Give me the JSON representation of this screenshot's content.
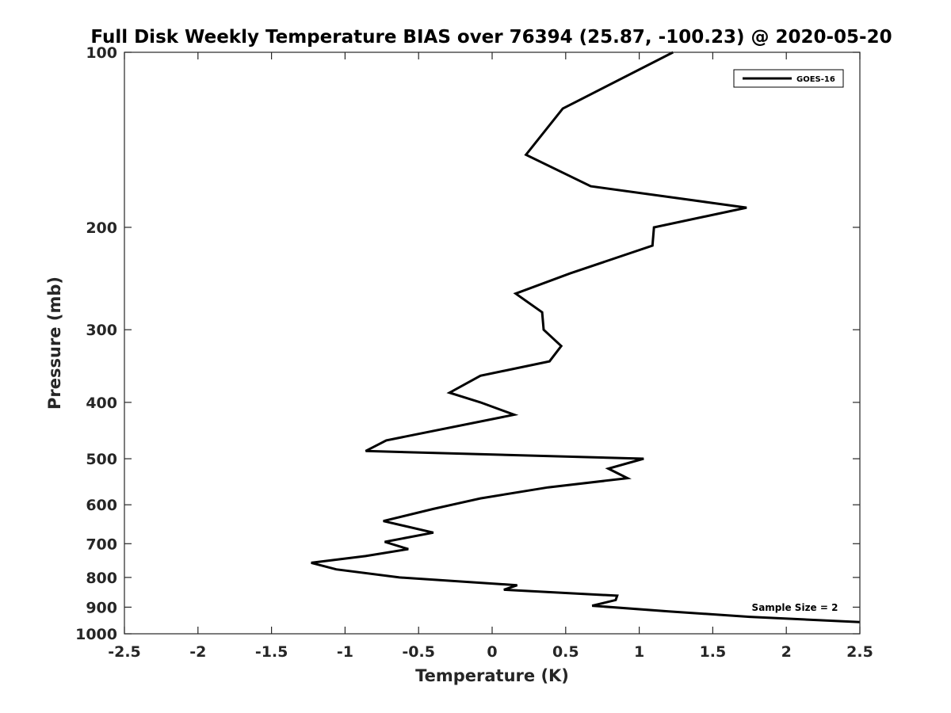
{
  "chart_data": {
    "type": "line",
    "title": "Full Disk Weekly Temperature BIAS over 76394 (25.87, -100.23) @ 2020-05-20",
    "xlabel": "Temperature (K)",
    "ylabel": "Pressure (mb)",
    "xlim": [
      -2.5,
      2.5
    ],
    "ylim": [
      1000,
      100
    ],
    "yscale": "log",
    "xticks": [
      -2.5,
      -2,
      -1.5,
      -1,
      -0.5,
      0,
      0.5,
      1,
      1.5,
      2,
      2.5
    ],
    "xtick_labels": [
      "-2.5",
      "-2",
      "-1.5",
      "-1",
      "-0.5",
      "0",
      "0.5",
      "1",
      "1.5",
      "2",
      "2.5"
    ],
    "yticks": [
      100,
      200,
      300,
      400,
      500,
      600,
      700,
      800,
      900,
      1000
    ],
    "ytick_labels": [
      "100",
      "200",
      "300",
      "400",
      "500",
      "600",
      "700",
      "800",
      "900",
      "1000"
    ],
    "grid": false,
    "legend_position": "top-right",
    "annotation": "Sample Size = 2",
    "series": [
      {
        "name": "GOES-16",
        "color": "#000000",
        "points": [
          {
            "x": 1.23,
            "p": 100
          },
          {
            "x": 0.48,
            "p": 125
          },
          {
            "x": 0.23,
            "p": 150
          },
          {
            "x": 0.67,
            "p": 170
          },
          {
            "x": 1.73,
            "p": 185
          },
          {
            "x": 1.1,
            "p": 200
          },
          {
            "x": 1.09,
            "p": 215
          },
          {
            "x": 0.53,
            "p": 240
          },
          {
            "x": 0.16,
            "p": 260
          },
          {
            "x": 0.34,
            "p": 280
          },
          {
            "x": 0.35,
            "p": 300
          },
          {
            "x": 0.47,
            "p": 320
          },
          {
            "x": 0.39,
            "p": 340
          },
          {
            "x": -0.08,
            "p": 360
          },
          {
            "x": -0.29,
            "p": 385
          },
          {
            "x": -0.08,
            "p": 400
          },
          {
            "x": 0.15,
            "p": 420
          },
          {
            "x": -0.72,
            "p": 465
          },
          {
            "x": -0.86,
            "p": 485
          },
          {
            "x": 1.03,
            "p": 500
          },
          {
            "x": 0.79,
            "p": 520
          },
          {
            "x": 0.92,
            "p": 540
          },
          {
            "x": 0.38,
            "p": 560
          },
          {
            "x": -0.08,
            "p": 585
          },
          {
            "x": -0.4,
            "p": 610
          },
          {
            "x": -0.74,
            "p": 640
          },
          {
            "x": -0.4,
            "p": 670
          },
          {
            "x": -0.73,
            "p": 695
          },
          {
            "x": -0.57,
            "p": 715
          },
          {
            "x": -0.86,
            "p": 735
          },
          {
            "x": -1.23,
            "p": 755
          },
          {
            "x": -1.06,
            "p": 775
          },
          {
            "x": -0.63,
            "p": 800
          },
          {
            "x": 0.17,
            "p": 825
          },
          {
            "x": 0.08,
            "p": 840
          },
          {
            "x": 0.85,
            "p": 860
          },
          {
            "x": 0.84,
            "p": 875
          },
          {
            "x": 0.68,
            "p": 895
          },
          {
            "x": 1.2,
            "p": 915
          },
          {
            "x": 1.75,
            "p": 935
          },
          {
            "x": 2.5,
            "p": 955
          }
        ]
      }
    ]
  }
}
